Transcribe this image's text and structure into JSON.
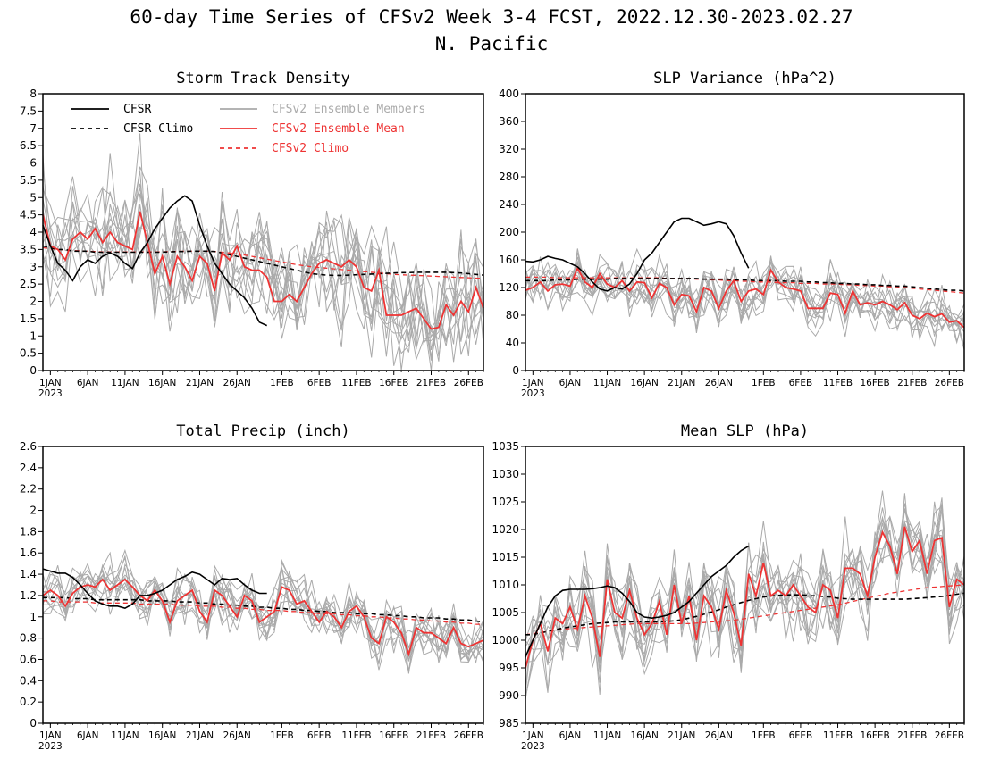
{
  "figure": {
    "title_line1": "60-day Time Series of CFSv2 Week 3-4 FCST, 2022.12.30-2023.02.27",
    "title_line2": "N. Pacific"
  },
  "x_ticks": [
    "1JAN",
    "6JAN",
    "11JAN",
    "16JAN",
    "21JAN",
    "26JAN",
    "1FEB",
    "6FEB",
    "11FEB",
    "16FEB",
    "21FEB",
    "26FEB"
  ],
  "x_tick_day": [
    2,
    7,
    12,
    17,
    22,
    27,
    33,
    38,
    43,
    48,
    53,
    58
  ],
  "x_year_label": "2023",
  "legend": {
    "cfsr": {
      "label": "CFSR",
      "color": "#000000",
      "style": "solid"
    },
    "cfsr_climo": {
      "label": "CFSR Climo",
      "color": "#000000",
      "style": "dashed"
    },
    "members": {
      "label": "CFSv2 Ensemble Members",
      "color": "#aaaaaa",
      "style": "solid"
    },
    "ens_mean": {
      "label": "CFSv2 Ensemble Mean",
      "color": "#ee3333",
      "style": "solid"
    },
    "cfsv2_climo": {
      "label": "CFSv2 Climo",
      "color": "#ee3333",
      "style": "dashed"
    }
  },
  "chart_data": [
    {
      "type": "line",
      "title": "Storm Track Density",
      "ylim": [
        0,
        8
      ],
      "y_ticks": [
        "0",
        "0.5",
        "1",
        "1.5",
        "2",
        "2.5",
        "3",
        "3.5",
        "4",
        "4.5",
        "5",
        "5.5",
        "6",
        "6.5",
        "7",
        "7.5",
        "8"
      ],
      "x_unit": "day index (1 = 2022-12-30)",
      "series": [
        {
          "name": "CFSR",
          "values": [
            4.2,
            3.6,
            3.1,
            2.9,
            2.6,
            3.0,
            3.2,
            3.1,
            3.3,
            3.4,
            3.3,
            3.1,
            2.95,
            3.4,
            3.7,
            4.1,
            4.4,
            4.7,
            4.9,
            5.05,
            4.9,
            4.2,
            3.6,
            3.1,
            2.8,
            2.5,
            2.3,
            2.1,
            1.8,
            1.4,
            1.3
          ]
        },
        {
          "name": "CFSR Climo",
          "values": [
            3.6,
            3.55,
            3.5,
            3.5,
            3.45,
            3.45,
            3.45,
            3.42,
            3.42,
            3.42,
            3.42,
            3.42,
            3.42,
            3.42,
            3.42,
            3.42,
            3.42,
            3.43,
            3.44,
            3.44,
            3.45,
            3.45,
            3.45,
            3.44,
            3.4,
            3.35,
            3.3,
            3.25,
            3.2,
            3.15,
            3.1,
            3.05,
            3.0,
            2.95,
            2.9,
            2.85,
            2.8,
            2.78,
            2.76,
            2.75,
            2.75,
            2.76,
            2.77,
            2.78,
            2.79,
            2.8,
            2.81,
            2.82,
            2.83,
            2.83,
            2.84,
            2.84,
            2.84,
            2.84,
            2.84,
            2.83,
            2.82,
            2.8,
            2.78,
            2.76
          ]
        },
        {
          "name": "CFSv2 Ensemble Mean",
          "values": [
            4.5,
            3.6,
            3.5,
            3.2,
            3.8,
            4.0,
            3.8,
            4.1,
            3.7,
            4.0,
            3.7,
            3.6,
            3.5,
            4.6,
            3.7,
            2.8,
            3.3,
            2.5,
            3.3,
            3.0,
            2.6,
            3.3,
            3.1,
            2.3,
            3.4,
            3.2,
            3.6,
            3.0,
            2.9,
            2.9,
            2.7,
            2.0,
            2.0,
            2.2,
            2.0,
            2.4,
            2.8,
            3.1,
            3.2,
            3.1,
            3.0,
            3.2,
            3.0,
            2.4,
            2.3,
            2.9,
            1.6,
            1.6,
            1.6,
            1.7,
            1.8,
            1.5,
            1.2,
            1.25,
            1.9,
            1.6,
            2.0,
            1.7,
            2.4,
            1.8
          ]
        },
        {
          "name": "CFSv2 Climo",
          "values": [
            3.55,
            3.52,
            3.5,
            3.48,
            3.47,
            3.46,
            3.45,
            3.44,
            3.43,
            3.43,
            3.43,
            3.43,
            3.43,
            3.43,
            3.43,
            3.43,
            3.43,
            3.44,
            3.44,
            3.45,
            3.45,
            3.45,
            3.45,
            3.44,
            3.42,
            3.4,
            3.37,
            3.34,
            3.3,
            3.26,
            3.22,
            3.18,
            3.14,
            3.1,
            3.06,
            3.03,
            3.0,
            2.98,
            2.96,
            2.94,
            2.92,
            2.9,
            2.88,
            2.86,
            2.84,
            2.82,
            2.8,
            2.78,
            2.77,
            2.76,
            2.75,
            2.74,
            2.73,
            2.72,
            2.71,
            2.7,
            2.69,
            2.68,
            2.67,
            2.66
          ]
        }
      ],
      "members": {
        "count": 12,
        "spread": 1.35,
        "seed": 11
      }
    },
    {
      "type": "line",
      "title": "SLP Variance (hPa^2)",
      "ylim": [
        0,
        400
      ],
      "y_ticks": [
        "0",
        "40",
        "80",
        "120",
        "160",
        "200",
        "240",
        "280",
        "320",
        "360",
        "400"
      ],
      "x_unit": "day index (1 = 2022-12-30)",
      "series": [
        {
          "name": "CFSR",
          "values": [
            158,
            157,
            160,
            165,
            162,
            160,
            155,
            150,
            140,
            128,
            118,
            115,
            120,
            118,
            125,
            140,
            160,
            170,
            185,
            200,
            215,
            220,
            220,
            215,
            210,
            212,
            215,
            212,
            195,
            170,
            148
          ]
        },
        {
          "name": "CFSR Climo",
          "values": [
            130,
            130,
            130,
            130,
            131,
            131,
            131,
            132,
            132,
            132,
            132,
            132,
            133,
            133,
            133,
            133,
            133,
            133,
            133,
            133,
            133,
            133,
            133,
            133,
            132,
            132,
            132,
            132,
            131,
            131,
            131,
            130,
            130,
            130,
            130,
            129,
            129,
            129,
            128,
            128,
            127,
            127,
            126,
            126,
            125,
            125,
            124,
            124,
            123,
            123,
            122,
            122,
            121,
            120,
            119,
            118,
            117,
            116,
            116,
            115
          ]
        },
        {
          "name": "CFSv2 Ensemble Mean",
          "values": [
            116,
            120,
            128,
            115,
            124,
            125,
            122,
            148,
            128,
            120,
            140,
            125,
            120,
            130,
            115,
            128,
            127,
            105,
            126,
            120,
            95,
            110,
            108,
            85,
            120,
            115,
            90,
            115,
            130,
            100,
            115,
            118,
            110,
            145,
            128,
            120,
            118,
            115,
            90,
            90,
            90,
            112,
            110,
            83,
            115,
            95,
            98,
            95,
            100,
            95,
            88,
            98,
            80,
            75,
            83,
            78,
            82,
            70,
            72,
            62
          ]
        },
        {
          "name": "CFSv2 Climo",
          "values": [
            135,
            135,
            135,
            135,
            134,
            134,
            134,
            134,
            134,
            134,
            134,
            134,
            134,
            134,
            134,
            134,
            134,
            134,
            134,
            133,
            133,
            133,
            133,
            132,
            132,
            131,
            131,
            130,
            130,
            129,
            129,
            128,
            128,
            128,
            127,
            127,
            127,
            126,
            126,
            126,
            125,
            125,
            125,
            124,
            124,
            123,
            123,
            122,
            122,
            121,
            121,
            120,
            119,
            118,
            117,
            116,
            115,
            114,
            113,
            112
          ]
        }
      ],
      "members": {
        "count": 12,
        "spread": 28,
        "seed": 23
      }
    },
    {
      "type": "line",
      "title": "Total Precip (inch)",
      "ylim": [
        0,
        2.6
      ],
      "y_ticks": [
        "0",
        "0.2",
        "0.4",
        "0.6",
        "0.8",
        "1",
        "1.2",
        "1.4",
        "1.6",
        "1.8",
        "2",
        "2.2",
        "2.4",
        "2.6"
      ],
      "x_unit": "day index (1 = 2022-12-30)",
      "series": [
        {
          "name": "CFSR",
          "values": [
            1.45,
            1.43,
            1.41,
            1.41,
            1.37,
            1.3,
            1.22,
            1.15,
            1.12,
            1.1,
            1.1,
            1.08,
            1.12,
            1.2,
            1.2,
            1.22,
            1.25,
            1.3,
            1.35,
            1.38,
            1.42,
            1.4,
            1.35,
            1.3,
            1.36,
            1.35,
            1.36,
            1.3,
            1.25,
            1.22,
            1.22
          ]
        },
        {
          "name": "CFSR Climo",
          "values": [
            1.18,
            1.18,
            1.18,
            1.18,
            1.17,
            1.17,
            1.17,
            1.16,
            1.16,
            1.16,
            1.16,
            1.16,
            1.16,
            1.16,
            1.15,
            1.15,
            1.15,
            1.15,
            1.14,
            1.14,
            1.14,
            1.13,
            1.13,
            1.12,
            1.12,
            1.11,
            1.11,
            1.1,
            1.1,
            1.09,
            1.09,
            1.08,
            1.08,
            1.07,
            1.07,
            1.06,
            1.06,
            1.05,
            1.05,
            1.04,
            1.04,
            1.04,
            1.03,
            1.03,
            1.03,
            1.02,
            1.02,
            1.01,
            1.01,
            1.0,
            1.0,
            0.99,
            0.99,
            0.99,
            0.98,
            0.98,
            0.97,
            0.97,
            0.96,
            0.95
          ]
        },
        {
          "name": "CFSv2 Ensemble Mean",
          "values": [
            1.2,
            1.25,
            1.2,
            1.1,
            1.22,
            1.28,
            1.3,
            1.28,
            1.35,
            1.25,
            1.3,
            1.35,
            1.28,
            1.2,
            1.15,
            1.25,
            1.15,
            0.95,
            1.15,
            1.2,
            1.25,
            1.05,
            0.95,
            1.25,
            1.2,
            1.1,
            1.0,
            1.2,
            1.15,
            0.95,
            1.0,
            1.05,
            1.28,
            1.25,
            1.12,
            1.15,
            1.05,
            0.95,
            1.05,
            1.0,
            0.9,
            1.05,
            1.1,
            1.0,
            0.8,
            0.75,
            1.0,
            0.95,
            0.85,
            0.65,
            0.9,
            0.85,
            0.85,
            0.8,
            0.75,
            0.9,
            0.75,
            0.72,
            0.75,
            0.78
          ]
        },
        {
          "name": "CFSv2 Climo",
          "values": [
            1.15,
            1.15,
            1.14,
            1.14,
            1.14,
            1.14,
            1.14,
            1.13,
            1.13,
            1.13,
            1.13,
            1.13,
            1.13,
            1.12,
            1.12,
            1.12,
            1.12,
            1.12,
            1.11,
            1.11,
            1.11,
            1.1,
            1.1,
            1.1,
            1.09,
            1.09,
            1.08,
            1.08,
            1.07,
            1.07,
            1.06,
            1.06,
            1.06,
            1.05,
            1.05,
            1.04,
            1.04,
            1.03,
            1.03,
            1.03,
            1.02,
            1.02,
            1.01,
            1.01,
            1.0,
            1.0,
            0.99,
            0.99,
            0.98,
            0.98,
            0.97,
            0.97,
            0.96,
            0.96,
            0.95,
            0.95,
            0.94,
            0.94,
            0.93,
            0.93
          ]
        }
      ],
      "members": {
        "count": 12,
        "spread": 0.19,
        "seed": 37
      }
    },
    {
      "type": "line",
      "title": "Mean SLP (hPa)",
      "ylim": [
        985,
        1035
      ],
      "y_ticks": [
        "985",
        "990",
        "995",
        "1000",
        "1005",
        "1010",
        "1015",
        "1020",
        "1025",
        "1030",
        "1035"
      ],
      "x_unit": "day index (1 = 2022-12-30)",
      "series": [
        {
          "name": "CFSR",
          "values": [
            997,
            1000,
            1003,
            1006,
            1008,
            1009,
            1009.2,
            1009.2,
            1009.2,
            1009.3,
            1009.5,
            1009.8,
            1009.5,
            1008.5,
            1007,
            1005,
            1004.2,
            1004,
            1004.2,
            1004.5,
            1005,
            1006,
            1007,
            1008.5,
            1010,
            1011.5,
            1012.5,
            1013.5,
            1015,
            1016.2,
            1017
          ]
        },
        {
          "name": "CFSR Climo",
          "values": [
            1001,
            1001,
            1001.3,
            1001.6,
            1001.9,
            1002.2,
            1002.4,
            1002.6,
            1002.8,
            1003.0,
            1003.1,
            1003.2,
            1003.3,
            1003.3,
            1003.3,
            1003.3,
            1003.3,
            1003.3,
            1003.3,
            1003.4,
            1003.5,
            1003.7,
            1004.0,
            1004.3,
            1004.7,
            1005.1,
            1005.5,
            1006.0,
            1006.4,
            1006.8,
            1007.2,
            1007.5,
            1007.8,
            1008.0,
            1008.1,
            1008.2,
            1008.2,
            1008.2,
            1008.1,
            1008.0,
            1007.9,
            1007.8,
            1007.6,
            1007.5,
            1007.4,
            1007.4,
            1007.4,
            1007.4,
            1007.4,
            1007.4,
            1007.4,
            1007.4,
            1007.5,
            1007.6,
            1007.7,
            1007.8,
            1007.9,
            1008.1,
            1008.3,
            1008.5
          ]
        },
        {
          "name": "CFSv2 Ensemble Mean",
          "values": [
            995,
            1000,
            1003,
            998,
            1004,
            1003,
            1006,
            1002,
            1008,
            1004,
            997,
            1011,
            1005,
            1004,
            1009,
            1004,
            1001,
            1003,
            1007,
            1001,
            1010,
            1003,
            1008,
            1000,
            1008,
            1006,
            1002,
            1009,
            1005,
            999,
            1012,
            1008,
            1014,
            1008,
            1009,
            1008,
            1010,
            1008,
            1006,
            1005,
            1010,
            1009,
            1004,
            1013,
            1013,
            1012,
            1008,
            1015,
            1019.5,
            1017,
            1012,
            1020.5,
            1016,
            1018,
            1012,
            1018,
            1018.5,
            1006,
            1011,
            1010
          ]
        },
        {
          "name": "CFSv2 Climo",
          "values": [
            1001,
            1001.2,
            1001.4,
            1001.6,
            1001.8,
            1002.0,
            1002.1,
            1002.2,
            1002.3,
            1002.4,
            1002.5,
            1002.6,
            1002.7,
            1002.8,
            1002.9,
            1003.0,
            1003.0,
            1003.0,
            1003.0,
            1003.0,
            1003.0,
            1003.0,
            1003.0,
            1003.1,
            1003.2,
            1003.3,
            1003.4,
            1003.5,
            1003.6,
            1003.8,
            1004.0,
            1004.2,
            1004.4,
            1004.6,
            1004.8,
            1005.0,
            1005.2,
            1005.4,
            1005.6,
            1005.8,
            1006.0,
            1006.2,
            1006.4,
            1006.7,
            1007.0,
            1007.3,
            1007.6,
            1007.9,
            1008.2,
            1008.5,
            1008.7,
            1008.9,
            1009.1,
            1009.3,
            1009.5,
            1009.6,
            1009.7,
            1009.8,
            1009.9,
            1010.0
          ]
        }
      ],
      "members": {
        "count": 12,
        "spread": 6.0,
        "seed": 53
      }
    }
  ]
}
